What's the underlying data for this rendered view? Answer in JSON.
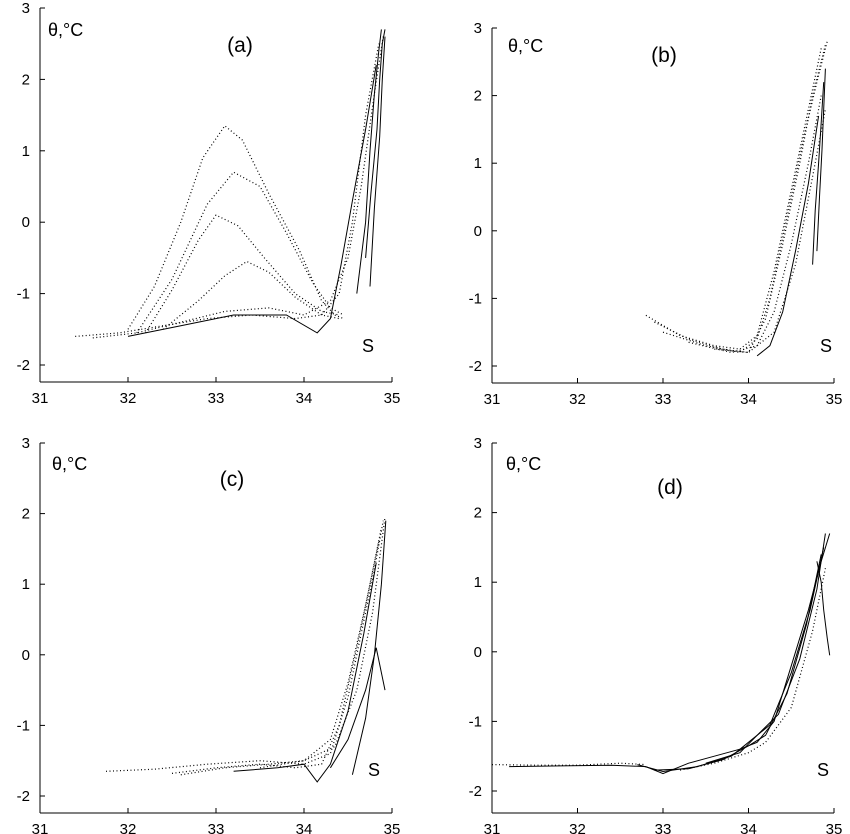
{
  "chart_data": [
    {
      "type": "line",
      "panel_label": "(a)",
      "ylabel": "θ,°C",
      "xlabel": "S",
      "xlim": [
        31,
        35
      ],
      "ylim": [
        -2,
        3
      ],
      "xticks": [
        "31",
        "32",
        "33",
        "34",
        "35"
      ],
      "yticks": [
        "-2",
        "-1",
        "0",
        "1",
        "2",
        "3"
      ],
      "grid": false,
      "series": [
        {
          "style": "dotted",
          "x": [
            32.0,
            32.3,
            32.6,
            32.85,
            33.1,
            33.3,
            33.6,
            33.95,
            34.2,
            34.35,
            34.45
          ],
          "y": [
            -1.5,
            -0.9,
            0.0,
            0.9,
            1.35,
            1.15,
            0.4,
            -0.4,
            -1.1,
            -1.3,
            -1.35
          ]
        },
        {
          "style": "dotted",
          "x": [
            32.1,
            32.5,
            32.9,
            33.2,
            33.5,
            33.8,
            34.1,
            34.3,
            34.45
          ],
          "y": [
            -1.55,
            -0.8,
            0.25,
            0.7,
            0.5,
            -0.15,
            -0.85,
            -1.2,
            -1.3
          ]
        },
        {
          "style": "dotted",
          "x": [
            32.2,
            32.5,
            32.8,
            33.0,
            33.25,
            33.55,
            33.9,
            34.2,
            34.4
          ],
          "y": [
            -1.55,
            -0.95,
            -0.25,
            0.1,
            -0.05,
            -0.5,
            -1.0,
            -1.25,
            -1.3
          ]
        },
        {
          "style": "dotted",
          "x": [
            32.4,
            32.8,
            33.1,
            33.35,
            33.6,
            33.9,
            34.2,
            34.4
          ],
          "y": [
            -1.5,
            -1.1,
            -0.75,
            -0.55,
            -0.7,
            -1.05,
            -1.3,
            -1.35
          ]
        },
        {
          "style": "dotted",
          "x": [
            31.4,
            31.9,
            32.4,
            32.9,
            33.4,
            33.9,
            34.2,
            34.4,
            34.55,
            34.7,
            34.85
          ],
          "y": [
            -1.6,
            -1.55,
            -1.45,
            -1.35,
            -1.3,
            -1.35,
            -1.3,
            -1.0,
            0.0,
            1.5,
            2.5
          ]
        },
        {
          "style": "dotted",
          "x": [
            31.6,
            32.1,
            32.6,
            33.1,
            33.6,
            34.0,
            34.3,
            34.5,
            34.65,
            34.8,
            34.9
          ],
          "y": [
            -1.62,
            -1.55,
            -1.4,
            -1.25,
            -1.2,
            -1.3,
            -1.1,
            -0.5,
            0.5,
            1.8,
            2.6
          ]
        },
        {
          "style": "solid",
          "x": [
            32.0,
            32.6,
            33.2,
            33.8,
            34.15,
            34.3,
            34.42,
            34.55,
            34.7,
            34.82
          ],
          "y": [
            -1.6,
            -1.45,
            -1.3,
            -1.3,
            -1.55,
            -1.35,
            -0.6,
            0.3,
            1.3,
            2.2
          ]
        },
        {
          "style": "solid",
          "x": [
            34.6,
            34.7,
            34.75,
            34.8,
            34.85,
            34.88
          ],
          "y": [
            -1.0,
            0.0,
            1.0,
            1.8,
            2.4,
            2.7
          ]
        },
        {
          "style": "solid",
          "x": [
            34.7,
            34.76,
            34.83,
            34.86,
            34.89,
            34.92
          ],
          "y": [
            -0.5,
            0.4,
            1.3,
            2.0,
            2.5,
            2.7
          ]
        },
        {
          "style": "solid",
          "x": [
            34.75,
            34.8,
            34.86,
            34.89,
            34.92
          ],
          "y": [
            -0.9,
            0.2,
            1.2,
            2.0,
            2.6
          ]
        }
      ]
    },
    {
      "type": "line",
      "panel_label": "(b)",
      "ylabel": "θ,°C",
      "xlabel": "S",
      "xlim": [
        31,
        35
      ],
      "ylim": [
        -2,
        3
      ],
      "xticks": [
        "31",
        "32",
        "33",
        "34",
        "35"
      ],
      "yticks": [
        "-2",
        "-1",
        "0",
        "1",
        "2",
        "3"
      ],
      "grid": false,
      "series": [
        {
          "style": "dotted",
          "x": [
            32.8,
            33.2,
            33.6,
            33.9,
            34.1,
            34.3,
            34.5,
            34.7,
            34.85
          ],
          "y": [
            -1.25,
            -1.55,
            -1.7,
            -1.75,
            -1.55,
            -0.6,
            0.6,
            1.8,
            2.7
          ]
        },
        {
          "style": "dotted",
          "x": [
            32.9,
            33.3,
            33.7,
            34.0,
            34.2,
            34.4,
            34.6,
            34.75,
            34.9
          ],
          "y": [
            -1.35,
            -1.6,
            -1.75,
            -1.8,
            -1.3,
            -0.2,
            1.0,
            2.0,
            2.75
          ]
        },
        {
          "style": "dotted",
          "x": [
            33.0,
            33.5,
            33.9,
            34.1,
            34.25,
            34.45,
            34.65,
            34.8,
            34.92
          ],
          "y": [
            -1.5,
            -1.7,
            -1.8,
            -1.6,
            -1.0,
            0.2,
            1.4,
            2.2,
            2.8
          ]
        },
        {
          "style": "dotted",
          "x": [
            33.3,
            33.8,
            34.1,
            34.3,
            34.5,
            34.7,
            34.85
          ],
          "y": [
            -1.65,
            -1.8,
            -1.7,
            -1.2,
            -0.2,
            1.0,
            2.0
          ]
        },
        {
          "style": "dotted",
          "x": [
            33.6,
            34.0,
            34.3,
            34.55,
            34.75,
            34.9
          ],
          "y": [
            -1.75,
            -1.8,
            -1.5,
            -0.5,
            0.8,
            1.8
          ]
        },
        {
          "style": "solid",
          "x": [
            34.1,
            34.25,
            34.4,
            34.55,
            34.7,
            34.82
          ],
          "y": [
            -1.85,
            -1.7,
            -1.2,
            -0.3,
            0.7,
            1.7
          ]
        },
        {
          "style": "solid",
          "x": [
            34.75,
            34.78,
            34.82,
            34.85,
            34.88
          ],
          "y": [
            -0.5,
            0.3,
            1.0,
            1.6,
            2.2
          ]
        },
        {
          "style": "solid",
          "x": [
            34.8,
            34.83,
            34.86,
            34.88,
            34.9
          ],
          "y": [
            -0.3,
            0.5,
            1.2,
            1.8,
            2.4
          ]
        }
      ]
    },
    {
      "type": "line",
      "panel_label": "(c)",
      "ylabel": "θ,°C",
      "xlabel": "S",
      "xlim": [
        31,
        35
      ],
      "ylim": [
        -2,
        3
      ],
      "xticks": [
        "31",
        "32",
        "33",
        "34",
        "35"
      ],
      "yticks": [
        "-2",
        "-1",
        "0",
        "1",
        "2",
        "3"
      ],
      "grid": false,
      "series": [
        {
          "style": "dotted",
          "x": [
            31.75,
            32.3,
            32.9,
            33.5,
            34.0,
            34.3,
            34.5,
            34.65,
            34.8,
            34.9
          ],
          "y": [
            -1.65,
            -1.62,
            -1.55,
            -1.5,
            -1.55,
            -1.4,
            -0.6,
            0.3,
            1.2,
            1.9
          ]
        },
        {
          "style": "dotted",
          "x": [
            32.5,
            33.0,
            33.5,
            33.9,
            34.2,
            34.4,
            34.6,
            34.75,
            34.88
          ],
          "y": [
            -1.68,
            -1.6,
            -1.55,
            -1.6,
            -1.55,
            -1.0,
            0.1,
            1.0,
            1.8
          ]
        },
        {
          "style": "dotted",
          "x": [
            32.6,
            33.1,
            33.6,
            34.0,
            34.3,
            34.5,
            34.7,
            34.85
          ],
          "y": [
            -1.7,
            -1.6,
            -1.55,
            -1.5,
            -1.2,
            -0.4,
            0.7,
            1.6
          ]
        },
        {
          "style": "dotted",
          "x": [
            33.5,
            34.0,
            34.35,
            34.6,
            34.78,
            34.92
          ],
          "y": [
            -1.6,
            -1.5,
            -1.3,
            -0.5,
            0.6,
            1.95
          ]
        },
        {
          "style": "solid",
          "x": [
            33.2,
            33.7,
            34.0,
            34.15,
            34.3,
            34.5,
            34.68,
            34.82
          ],
          "y": [
            -1.65,
            -1.6,
            -1.55,
            -1.8,
            -1.55,
            -0.8,
            0.3,
            1.3
          ]
        },
        {
          "style": "solid",
          "x": [
            34.3,
            34.5,
            34.7,
            34.82,
            34.92
          ],
          "y": [
            -1.6,
            -1.2,
            -0.5,
            0.1,
            -0.5
          ]
        },
        {
          "style": "solid",
          "x": [
            34.55,
            34.7,
            34.8,
            34.88,
            34.93
          ],
          "y": [
            -1.7,
            -0.9,
            0.0,
            1.0,
            1.9
          ]
        }
      ]
    },
    {
      "type": "line",
      "panel_label": "(d)",
      "ylabel": "θ,°C",
      "xlabel": "S",
      "xlim": [
        31,
        35
      ],
      "ylim": [
        -2,
        3
      ],
      "xticks": [
        "31",
        "32",
        "33",
        "34",
        "35"
      ],
      "yticks": [
        "-2",
        "-1",
        "0",
        "1",
        "2",
        "3"
      ],
      "grid": false,
      "series": [
        {
          "style": "dotted",
          "x": [
            31.0,
            31.5,
            32.0,
            32.5,
            32.8
          ],
          "y": [
            -1.62,
            -1.63,
            -1.63,
            -1.6,
            -1.62
          ]
        },
        {
          "style": "solid",
          "x": [
            31.2,
            31.8,
            32.4,
            32.8,
            33.0,
            33.3,
            33.6,
            33.9,
            34.1,
            34.3,
            34.5,
            34.7,
            34.85,
            34.95
          ],
          "y": [
            -1.65,
            -1.64,
            -1.63,
            -1.65,
            -1.75,
            -1.6,
            -1.5,
            -1.4,
            -1.3,
            -1.0,
            -0.2,
            0.6,
            1.3,
            1.7
          ]
        },
        {
          "style": "solid",
          "x": [
            32.7,
            33.0,
            33.4,
            33.8,
            34.05,
            34.25,
            34.5,
            34.72,
            34.88
          ],
          "y": [
            -1.62,
            -1.72,
            -1.65,
            -1.5,
            -1.25,
            -1.05,
            -0.3,
            0.6,
            1.5
          ]
        },
        {
          "style": "solid",
          "x": [
            32.9,
            33.3,
            33.7,
            34.0,
            34.2,
            34.45,
            34.68,
            34.85
          ],
          "y": [
            -1.7,
            -1.68,
            -1.55,
            -1.35,
            -1.2,
            -0.6,
            0.4,
            1.4
          ]
        },
        {
          "style": "solid",
          "x": [
            33.5,
            33.9,
            34.1,
            34.35,
            34.6,
            34.8,
            34.9
          ],
          "y": [
            -1.6,
            -1.45,
            -1.2,
            -0.9,
            -0.1,
            0.9,
            1.7
          ]
        },
        {
          "style": "solid",
          "x": [
            34.8,
            34.85,
            34.88,
            34.92,
            34.95
          ],
          "y": [
            1.3,
            1.0,
            0.6,
            0.2,
            -0.05
          ]
        },
        {
          "style": "dotted",
          "x": [
            33.2,
            33.6,
            34.0,
            34.2,
            34.5,
            34.75,
            34.9
          ],
          "y": [
            -1.7,
            -1.6,
            -1.45,
            -1.3,
            -0.8,
            0.3,
            1.2
          ]
        }
      ]
    }
  ]
}
